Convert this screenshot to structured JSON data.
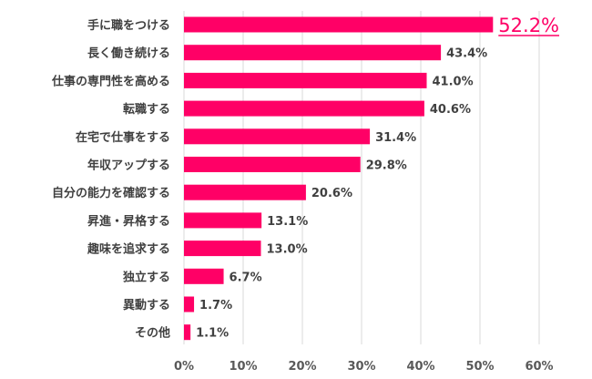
{
  "chart_data": {
    "type": "bar",
    "orientation": "horizontal",
    "categories": [
      "手に職をつける",
      "長く働き続ける",
      "仕事の専門性を高める",
      "転職する",
      "在宅で仕事をする",
      "年収アップする",
      "自分の能力を確認する",
      "昇進・昇格する",
      "趣味を追求する",
      "独立する",
      "異動する",
      "その他"
    ],
    "values": [
      52.2,
      43.4,
      41.0,
      40.6,
      31.4,
      29.8,
      20.6,
      13.1,
      13.0,
      6.7,
      1.7,
      1.1
    ],
    "value_labels": [
      "52.2%",
      "43.4%",
      "41.0%",
      "40.6%",
      "31.4%",
      "29.8%",
      "20.6%",
      "13.1%",
      "13.0%",
      "6.7%",
      "1.7%",
      "1.1%"
    ],
    "highlight_index": 0,
    "xticks": [
      "0%",
      "10%",
      "20%",
      "30%",
      "40%",
      "50%",
      "60%"
    ],
    "xlim": [
      0,
      60
    ],
    "grid": true,
    "title": "",
    "xlabel": "",
    "ylabel": "",
    "colors": {
      "bar": "#FF0066",
      "highlight_label": "#FF0066",
      "grid": "#D9D9D9",
      "text": "#404040"
    }
  }
}
